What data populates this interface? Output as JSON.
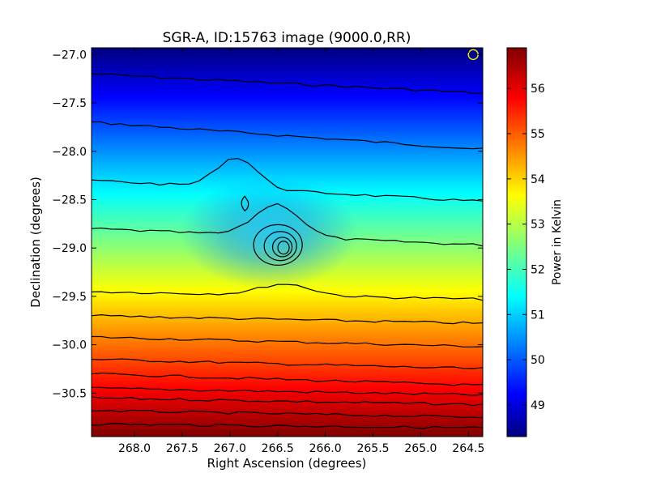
{
  "chart_data": {
    "type": "heatmap",
    "title": "SGR-A, ID:15763 image (9000.0,RR)",
    "xlabel": "Right Ascension (degrees)",
    "ylabel": "Declination (degrees)",
    "xlim": [
      268.45,
      264.35
    ],
    "ylim": [
      -30.95,
      -26.93
    ],
    "x_ticks": [
      "268.0",
      "267.5",
      "267.0",
      "266.5",
      "266.0",
      "265.5",
      "265.0",
      "264.5"
    ],
    "x_tick_values": [
      268.0,
      267.5,
      267.0,
      266.5,
      266.0,
      265.5,
      265.0,
      264.5
    ],
    "y_ticks": [
      "−27.0",
      "−27.5",
      "−28.0",
      "−28.5",
      "−29.0",
      "−29.5",
      "−30.0",
      "−30.5"
    ],
    "y_tick_values": [
      -27.0,
      -27.5,
      -28.0,
      -28.5,
      -29.0,
      -29.5,
      -30.0,
      -30.5
    ],
    "colorbar": {
      "label": "Power in Kelvin",
      "range": [
        48.3,
        56.9
      ],
      "ticks": [
        "49",
        "50",
        "51",
        "52",
        "53",
        "54",
        "55",
        "56"
      ],
      "tick_values": [
        49,
        50,
        51,
        52,
        53,
        54,
        55,
        56
      ],
      "colormap": "jet"
    },
    "source": {
      "ra": 266.42,
      "dec": -29.01,
      "peak_kelvin": 51.6
    },
    "beam_marker": {
      "ra": 264.45,
      "dec": -27.0,
      "color": "#e8e800"
    },
    "contour_color": "#000000",
    "contours_dec_at_ra_edges": [
      [
        -27.2,
        -27.4
      ],
      [
        -27.7,
        -27.98
      ],
      [
        -28.3,
        -28.52
      ],
      [
        -28.8,
        -28.97
      ],
      [
        -29.45,
        -29.53
      ],
      [
        -29.7,
        -29.78
      ],
      [
        -29.92,
        -30.02
      ],
      [
        -30.15,
        -30.25
      ],
      [
        -30.3,
        -30.42
      ],
      [
        -30.45,
        -30.52
      ],
      [
        -30.55,
        -30.62
      ],
      [
        -30.68,
        -30.75
      ],
      [
        -30.82,
        -30.86
      ]
    ]
  }
}
